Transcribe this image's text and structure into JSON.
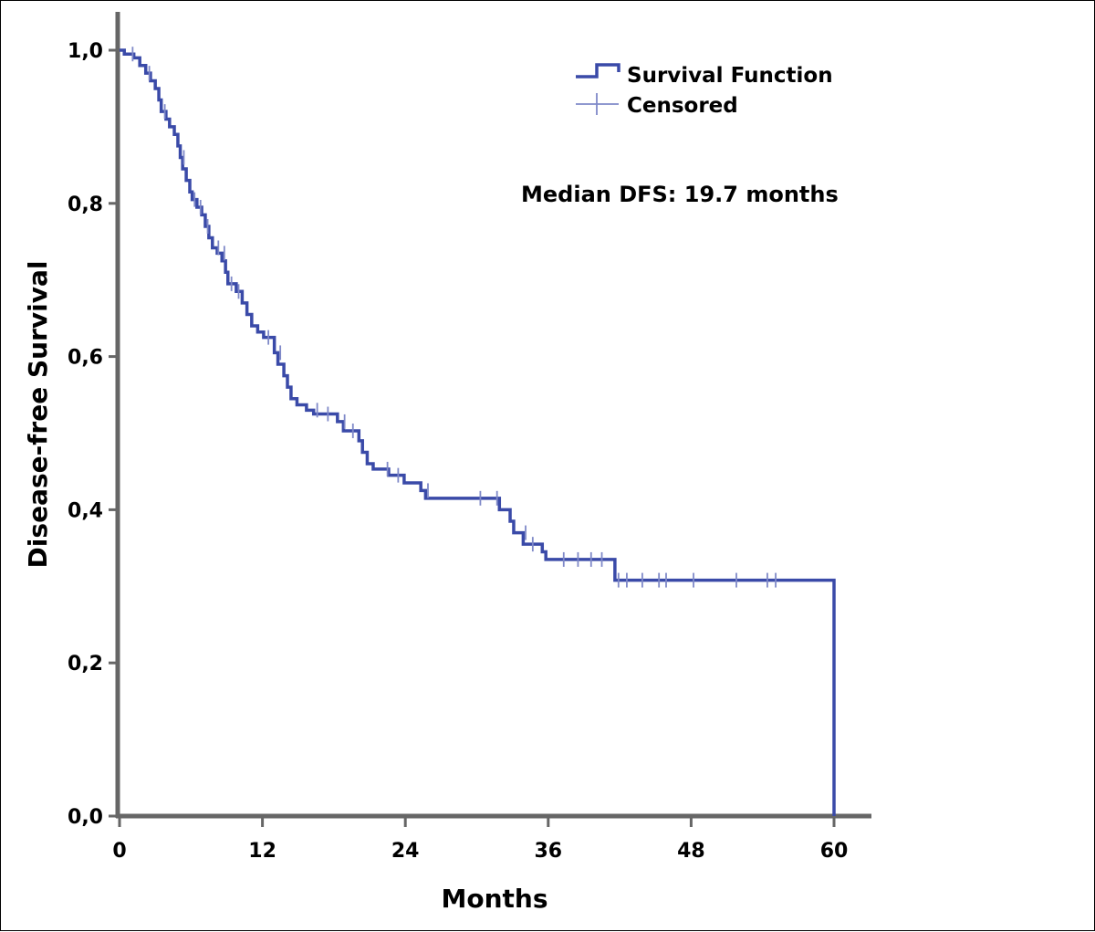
{
  "chart_data": {
    "type": "line",
    "subtype": "kaplan-meier",
    "title": "",
    "xlabel": "Months",
    "ylabel": "Disease-free Survival",
    "xlim": [
      0,
      63
    ],
    "ylim": [
      0,
      1.0
    ],
    "xticks": [
      0,
      12,
      24,
      36,
      48,
      60
    ],
    "xtick_labels": [
      "0",
      "12",
      "24",
      "36",
      "48",
      "60"
    ],
    "yticks": [
      0,
      0.2,
      0.4,
      0.6,
      0.8,
      1.0
    ],
    "ytick_labels": [
      "0,0",
      "0,2",
      "0,4",
      "0,6",
      "0,8",
      "1,0"
    ],
    "grid": false,
    "legend": {
      "position": "top-right",
      "entries": [
        {
          "label": "Survival Function",
          "symbol": "step-line"
        },
        {
          "label": "Censored",
          "symbol": "plus"
        }
      ]
    },
    "annotation": "Median DFS: 19.7 months",
    "colors": {
      "survival": "#3a4aa8",
      "censored": "#7f89c8"
    },
    "series": [
      {
        "name": "Survival Function",
        "steps": [
          [
            0,
            1.0
          ],
          [
            0.4,
            0.995
          ],
          [
            1.2,
            0.99
          ],
          [
            1.7,
            0.98
          ],
          [
            2.2,
            0.97
          ],
          [
            2.6,
            0.96
          ],
          [
            3.0,
            0.95
          ],
          [
            3.3,
            0.935
          ],
          [
            3.5,
            0.92
          ],
          [
            3.9,
            0.91
          ],
          [
            4.2,
            0.9
          ],
          [
            4.6,
            0.89
          ],
          [
            4.9,
            0.875
          ],
          [
            5.1,
            0.86
          ],
          [
            5.3,
            0.845
          ],
          [
            5.6,
            0.83
          ],
          [
            5.9,
            0.815
          ],
          [
            6.1,
            0.805
          ],
          [
            6.5,
            0.795
          ],
          [
            6.9,
            0.785
          ],
          [
            7.2,
            0.77
          ],
          [
            7.5,
            0.755
          ],
          [
            7.8,
            0.742
          ],
          [
            8.2,
            0.735
          ],
          [
            8.6,
            0.725
          ],
          [
            8.9,
            0.71
          ],
          [
            9.1,
            0.695
          ],
          [
            9.8,
            0.685
          ],
          [
            10.3,
            0.67
          ],
          [
            10.7,
            0.655
          ],
          [
            11.1,
            0.64
          ],
          [
            11.6,
            0.632
          ],
          [
            12.1,
            0.625
          ],
          [
            13.0,
            0.605
          ],
          [
            13.3,
            0.59
          ],
          [
            13.8,
            0.575
          ],
          [
            14.1,
            0.56
          ],
          [
            14.4,
            0.545
          ],
          [
            14.9,
            0.537
          ],
          [
            15.7,
            0.53
          ],
          [
            16.3,
            0.525
          ],
          [
            18.3,
            0.515
          ],
          [
            18.8,
            0.503
          ],
          [
            20.1,
            0.49
          ],
          [
            20.4,
            0.475
          ],
          [
            20.8,
            0.46
          ],
          [
            21.3,
            0.453
          ],
          [
            22.6,
            0.445
          ],
          [
            23.9,
            0.435
          ],
          [
            25.3,
            0.425
          ],
          [
            25.7,
            0.415
          ],
          [
            31.9,
            0.4
          ],
          [
            32.8,
            0.385
          ],
          [
            33.1,
            0.37
          ],
          [
            33.9,
            0.355
          ],
          [
            35.5,
            0.345
          ],
          [
            35.8,
            0.335
          ],
          [
            41.6,
            0.308
          ],
          [
            60.0,
            0.0
          ]
        ]
      },
      {
        "name": "Censored",
        "points": [
          [
            1.1,
            0.995
          ],
          [
            2.5,
            0.97
          ],
          [
            3.8,
            0.92
          ],
          [
            5.4,
            0.86
          ],
          [
            6.3,
            0.805
          ],
          [
            6.8,
            0.795
          ],
          [
            7.4,
            0.77
          ],
          [
            8.3,
            0.742
          ],
          [
            8.8,
            0.735
          ],
          [
            9.4,
            0.695
          ],
          [
            10.0,
            0.685
          ],
          [
            12.5,
            0.625
          ],
          [
            13.5,
            0.605
          ],
          [
            16.6,
            0.53
          ],
          [
            17.5,
            0.525
          ],
          [
            18.9,
            0.515
          ],
          [
            19.6,
            0.503
          ],
          [
            22.5,
            0.453
          ],
          [
            23.4,
            0.445
          ],
          [
            25.9,
            0.425
          ],
          [
            30.3,
            0.415
          ],
          [
            31.7,
            0.415
          ],
          [
            34.1,
            0.37
          ],
          [
            34.7,
            0.355
          ],
          [
            37.3,
            0.335
          ],
          [
            38.5,
            0.335
          ],
          [
            39.6,
            0.335
          ],
          [
            40.5,
            0.335
          ],
          [
            41.9,
            0.308
          ],
          [
            42.6,
            0.308
          ],
          [
            43.9,
            0.308
          ],
          [
            45.3,
            0.308
          ],
          [
            45.9,
            0.308
          ],
          [
            48.2,
            0.308
          ],
          [
            51.8,
            0.308
          ],
          [
            54.4,
            0.308
          ],
          [
            55.1,
            0.308
          ]
        ]
      }
    ]
  }
}
